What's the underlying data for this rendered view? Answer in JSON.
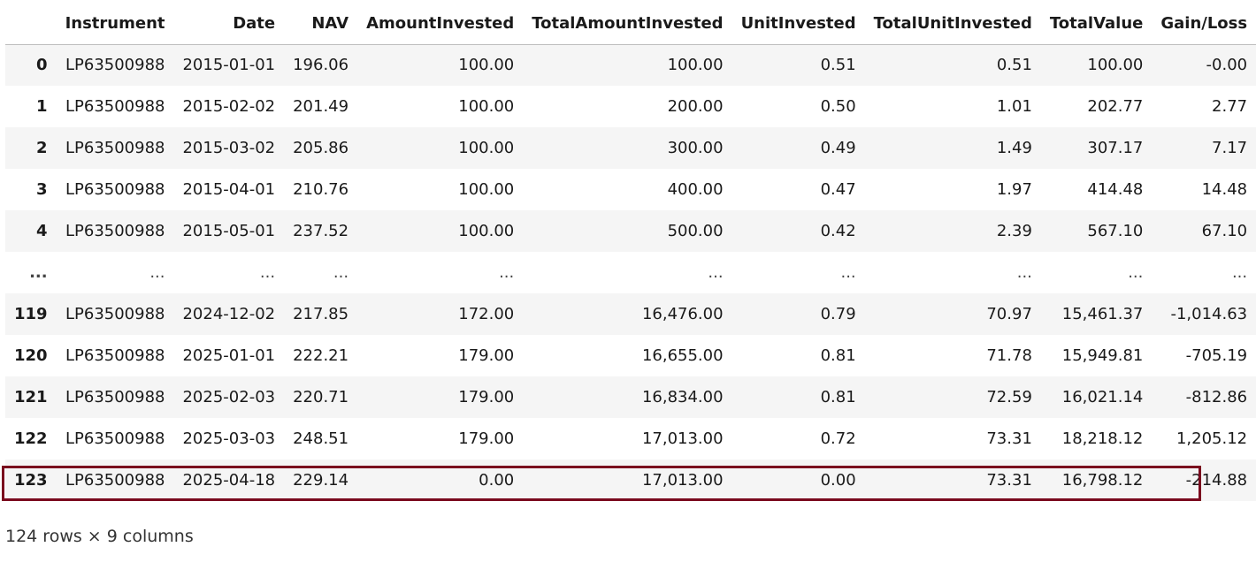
{
  "dataframe": {
    "columns": [
      "",
      "Instrument",
      "Date",
      "NAV",
      "AmountInvested",
      "TotalAmountInvested",
      "UnitInvested",
      "TotalUnitInvested",
      "TotalValue",
      "Gain/Loss"
    ],
    "rows": [
      [
        "0",
        "LP63500988",
        "2015-01-01",
        "196.06",
        "100.00",
        "100.00",
        "0.51",
        "0.51",
        "100.00",
        "-0.00"
      ],
      [
        "1",
        "LP63500988",
        "2015-02-02",
        "201.49",
        "100.00",
        "200.00",
        "0.50",
        "1.01",
        "202.77",
        "2.77"
      ],
      [
        "2",
        "LP63500988",
        "2015-03-02",
        "205.86",
        "100.00",
        "300.00",
        "0.49",
        "1.49",
        "307.17",
        "7.17"
      ],
      [
        "3",
        "LP63500988",
        "2015-04-01",
        "210.76",
        "100.00",
        "400.00",
        "0.47",
        "1.97",
        "414.48",
        "14.48"
      ],
      [
        "4",
        "LP63500988",
        "2015-05-01",
        "237.52",
        "100.00",
        "500.00",
        "0.42",
        "2.39",
        "567.10",
        "67.10"
      ],
      [
        "...",
        "...",
        "...",
        "...",
        "...",
        "...",
        "...",
        "...",
        "...",
        "..."
      ],
      [
        "119",
        "LP63500988",
        "2024-12-02",
        "217.85",
        "172.00",
        "16,476.00",
        "0.79",
        "70.97",
        "15,461.37",
        "-1,014.63"
      ],
      [
        "120",
        "LP63500988",
        "2025-01-01",
        "222.21",
        "179.00",
        "16,655.00",
        "0.81",
        "71.78",
        "15,949.81",
        "-705.19"
      ],
      [
        "121",
        "LP63500988",
        "2025-02-03",
        "220.71",
        "179.00",
        "16,834.00",
        "0.81",
        "72.59",
        "16,021.14",
        "-812.86"
      ],
      [
        "122",
        "LP63500988",
        "2025-03-03",
        "248.51",
        "179.00",
        "17,013.00",
        "0.72",
        "73.31",
        "18,218.12",
        "1,205.12"
      ],
      [
        "123",
        "LP63500988",
        "2025-04-18",
        "229.14",
        "0.00",
        "17,013.00",
        "0.00",
        "73.31",
        "16,798.12",
        "-214.88"
      ]
    ],
    "shape_text": "124 rows × 9 columns",
    "highlight_color": "#7a0a1e"
  }
}
